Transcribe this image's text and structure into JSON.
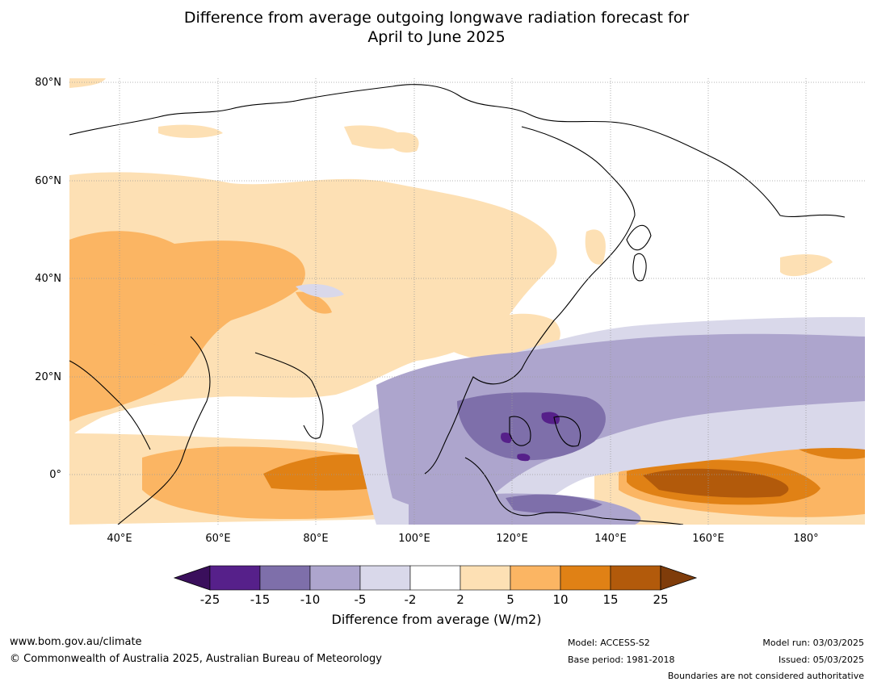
{
  "title_line1": "Difference from average outgoing longwave radiation forecast for",
  "title_line2": "April to June 2025",
  "lat_labels": [
    "80°N",
    "60°N",
    "40°N",
    "20°N",
    "0°"
  ],
  "lon_labels": [
    "40°E",
    "60°E",
    "80°E",
    "100°E",
    "120°E",
    "140°E",
    "160°E",
    "180°"
  ],
  "colorbar": {
    "ticks": [
      "-25",
      "-15",
      "-10",
      "-5",
      "-2",
      "2",
      "5",
      "10",
      "15",
      "25"
    ],
    "colors": [
      "#3a0f5c",
      "#56208a",
      "#7e6faa",
      "#ada5cd",
      "#d9d8ea",
      "#ffffff",
      "#fde0b4",
      "#fbb563",
      "#e08115",
      "#b25a0b",
      "#7f3c0a"
    ],
    "label": "Difference from average (W/m2)"
  },
  "footer": {
    "url": "www.bom.gov.au/climate",
    "copyright": "© Commonwealth of Australia 2025, Australian Bureau of Meteorology",
    "model": "Model: ACCESS-S2",
    "base_period": "Base period: 1981-2018",
    "model_run": "Model run: 03/03/2025",
    "issued": "Issued: 05/03/2025",
    "disclaimer": "Boundaries are not considered authoritative"
  }
}
